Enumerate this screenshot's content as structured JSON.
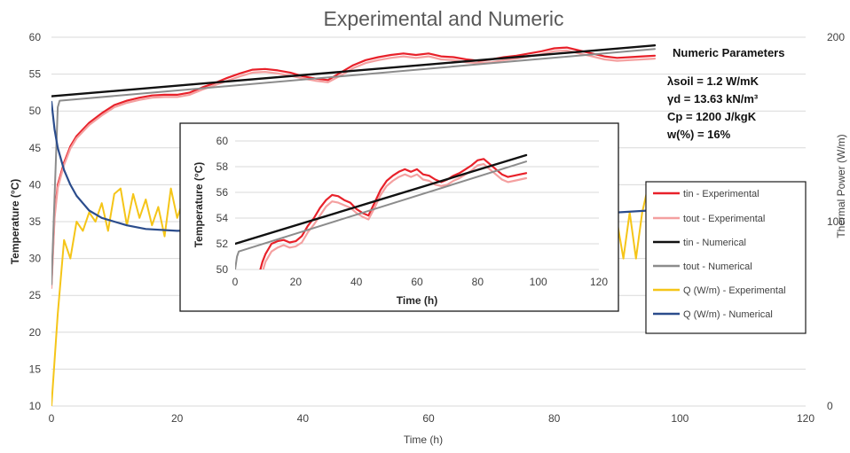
{
  "chart_data": [
    {
      "type": "line",
      "title": "Experimental and Numeric",
      "xlabel": "Time (h)",
      "ylabel": "Temperature (°C)",
      "y2label": "Thermal Power (W/m)",
      "xlim": [
        0,
        120
      ],
      "ylim": [
        10,
        60
      ],
      "y2lim": [
        0,
        200
      ],
      "xticks": [
        0,
        20,
        40,
        60,
        80,
        100,
        120
      ],
      "yticks": [
        10,
        15,
        20,
        25,
        30,
        35,
        40,
        45,
        50,
        55,
        60
      ],
      "y2ticks": [
        0,
        100,
        200
      ],
      "grid": "horizontal",
      "legend_placement": "right",
      "series": [
        {
          "name": "tin - Experimental",
          "color": "#e8212a",
          "width": 2.2,
          "axis": "left",
          "x": [
            0,
            0.5,
            1,
            2,
            3,
            4,
            6,
            8,
            10,
            12,
            14,
            16,
            18,
            20,
            22,
            24,
            26,
            28,
            30,
            32,
            34,
            36,
            38,
            40,
            42,
            44,
            46,
            48,
            50,
            52,
            54,
            56,
            58,
            60,
            62,
            64,
            66,
            68,
            70,
            72,
            74,
            76,
            78,
            80,
            82,
            84,
            86,
            88,
            90,
            92,
            94,
            96
          ],
          "y": [
            26.5,
            36,
            40,
            43,
            45.2,
            46.6,
            48.4,
            49.7,
            50.8,
            51.4,
            51.8,
            52.1,
            52.2,
            52.2,
            52.5,
            53.2,
            53.8,
            54.5,
            55.1,
            55.6,
            55.7,
            55.5,
            55.2,
            54.7,
            54.4,
            54.2,
            55.2,
            56.2,
            56.9,
            57.3,
            57.6,
            57.8,
            57.6,
            57.8,
            57.4,
            57.3,
            57,
            56.8,
            57,
            57.3,
            57.5,
            57.8,
            58.1,
            58.5,
            58.6,
            58.2,
            57.8,
            57.4,
            57.2,
            57.3,
            57.4,
            57.5
          ]
        },
        {
          "name": "tout - Experimental",
          "color": "#f4a0a0",
          "width": 2.2,
          "axis": "left",
          "x": [
            0,
            0.5,
            1,
            2,
            3,
            4,
            6,
            8,
            10,
            12,
            14,
            16,
            18,
            20,
            22,
            24,
            26,
            28,
            30,
            32,
            34,
            36,
            38,
            40,
            42,
            44,
            46,
            48,
            50,
            52,
            54,
            56,
            58,
            60,
            62,
            64,
            66,
            68,
            70,
            72,
            74,
            76,
            78,
            80,
            82,
            84,
            86,
            88,
            90,
            92,
            94,
            96
          ],
          "y": [
            26,
            35.5,
            39.6,
            42.7,
            44.9,
            46.3,
            48.1,
            49.4,
            50.5,
            51.1,
            51.5,
            51.8,
            51.9,
            51.9,
            52.2,
            52.9,
            53.5,
            54.1,
            54.7,
            55.2,
            55.3,
            55.1,
            54.8,
            54.4,
            54.1,
            53.9,
            54.8,
            55.8,
            56.5,
            56.9,
            57.2,
            57.4,
            57.2,
            57.4,
            57,
            56.9,
            56.6,
            56.5,
            56.6,
            56.9,
            57.1,
            57.4,
            57.7,
            58.1,
            58.2,
            57.8,
            57.4,
            57,
            56.8,
            56.9,
            57,
            57.1
          ]
        },
        {
          "name": "tin - Numerical",
          "color": "#111111",
          "width": 2.4,
          "axis": "left",
          "x": [
            0,
            96
          ],
          "y": [
            52,
            58.9
          ]
        },
        {
          "name": "tout - Numerical",
          "color": "#8c8c8c",
          "width": 2,
          "axis": "left",
          "x": [
            0,
            1,
            1.3,
            96
          ],
          "y": [
            26.5,
            50.5,
            51.4,
            58.4
          ]
        },
        {
          "name": "Q (W/m) - Experimental",
          "color": "#f5c518",
          "width": 2,
          "axis": "right",
          "x": [
            0,
            1,
            2,
            3,
            4,
            5,
            6,
            7,
            8,
            9,
            10,
            11,
            12,
            13,
            14,
            15,
            16,
            17,
            18,
            19,
            20,
            21,
            22,
            23,
            24,
            25,
            26,
            27,
            28,
            29,
            30,
            31,
            32,
            33,
            34,
            35,
            36,
            37,
            38,
            39,
            40,
            41,
            42,
            43,
            44,
            45,
            46,
            47,
            48,
            49,
            50,
            51,
            52,
            53,
            54,
            55,
            56,
            57,
            58,
            59,
            60,
            61,
            62,
            63,
            64,
            65,
            66,
            67,
            68,
            69,
            70,
            71,
            72,
            73,
            74,
            75,
            76,
            77,
            78,
            79,
            80,
            81,
            82,
            83,
            84,
            85,
            86,
            87,
            88,
            89,
            90,
            91,
            92,
            93,
            94,
            95
          ],
          "y": [
            0,
            50,
            90,
            80,
            100,
            95,
            105,
            100,
            110,
            95,
            115,
            118,
            98,
            115,
            102,
            112,
            98,
            108,
            92,
            118,
            102,
            112,
            95,
            115,
            100,
            110,
            98,
            112,
            100,
            95,
            110,
            105,
            108,
            122,
            100,
            112,
            108,
            120,
            95,
            112,
            98,
            100,
            110,
            95,
            82,
            100,
            118,
            112,
            130,
            105,
            118,
            108,
            118,
            112,
            120,
            105,
            118,
            110,
            112,
            115,
            100,
            118,
            110,
            115,
            108,
            120,
            105,
            112,
            115,
            100,
            112,
            105,
            118,
            110,
            115,
            108,
            120,
            112,
            125,
            130,
            115,
            130,
            100,
            112,
            80,
            82,
            78,
            82,
            95,
            82,
            100,
            80,
            105,
            80,
            105,
            120
          ]
        },
        {
          "name": "Q (W/m) - Numerical",
          "color": "#2b4c8c",
          "width": 2.2,
          "axis": "right",
          "x": [
            0,
            0.5,
            1,
            2,
            3,
            4,
            5,
            6,
            8,
            10,
            12,
            15,
            20,
            30,
            40,
            50,
            60,
            70,
            80,
            90,
            95
          ],
          "y": [
            165,
            150,
            140,
            128,
            120,
            114,
            110,
            106,
            102,
            100,
            98,
            96,
            95,
            96,
            97,
            99,
            100,
            102,
            104,
            105,
            106
          ]
        }
      ],
      "annotation": {
        "heading": "Numeric Parameters",
        "lines": [
          "λsoil = 1.2 W/mK",
          "γd = 13.63 kN/m³",
          "Cp = 1200 J/kgK",
          "w(%) = 16%"
        ]
      }
    },
    {
      "type": "line",
      "xlabel": "Time (h)",
      "ylabel": "Temperature (°C)",
      "xlim": [
        0,
        120
      ],
      "ylim": [
        50,
        60
      ],
      "xticks": [
        0,
        20,
        40,
        60,
        80,
        100,
        120
      ],
      "yticks": [
        50,
        52,
        54,
        56,
        58,
        60
      ],
      "grid": "horizontal",
      "series": [
        {
          "name": "tin - Experimental",
          "color": "#e8212a",
          "width": 2.2,
          "x": [
            8,
            9,
            10,
            12,
            14,
            16,
            18,
            20,
            22,
            24,
            26,
            28,
            30,
            32,
            34,
            36,
            38,
            40,
            42,
            44,
            46,
            48,
            50,
            52,
            54,
            56,
            58,
            60,
            62,
            64,
            66,
            68,
            70,
            72,
            74,
            76,
            78,
            80,
            82,
            84,
            86,
            88,
            90,
            92,
            94,
            96
          ],
          "y": [
            49.7,
            50.6,
            51.2,
            52,
            52.2,
            52.3,
            52.1,
            52.2,
            52.6,
            53.4,
            54,
            54.8,
            55.4,
            55.8,
            55.7,
            55.4,
            55.2,
            54.7,
            54.4,
            54.2,
            55.2,
            56.2,
            56.9,
            57.3,
            57.6,
            57.8,
            57.6,
            57.8,
            57.4,
            57.3,
            57,
            56.8,
            57,
            57.3,
            57.5,
            57.8,
            58.1,
            58.5,
            58.6,
            58.2,
            57.8,
            57.4,
            57.2,
            57.3,
            57.4,
            57.5
          ]
        },
        {
          "name": "tout - Experimental",
          "color": "#f4a0a0",
          "width": 2.2,
          "x": [
            9,
            10,
            12,
            14,
            16,
            18,
            20,
            22,
            24,
            26,
            28,
            30,
            32,
            34,
            36,
            38,
            40,
            42,
            44,
            46,
            48,
            50,
            52,
            54,
            56,
            58,
            60,
            62,
            64,
            66,
            68,
            70,
            72,
            74,
            76,
            78,
            80,
            82,
            84,
            86,
            88,
            90,
            92,
            94,
            96
          ],
          "y": [
            49.8,
            50.6,
            51.4,
            51.7,
            51.9,
            51.7,
            51.8,
            52.1,
            52.9,
            53.5,
            54.2,
            54.9,
            55.3,
            55.2,
            55,
            54.8,
            54.4,
            54.1,
            53.9,
            54.8,
            55.8,
            56.5,
            56.9,
            57.2,
            57.4,
            57.2,
            57.4,
            57,
            56.9,
            56.6,
            56.5,
            56.6,
            56.9,
            57.1,
            57.4,
            57.7,
            58.1,
            58.2,
            57.8,
            57.4,
            57,
            56.8,
            56.9,
            57,
            57.1
          ]
        },
        {
          "name": "tin - Numerical",
          "color": "#111111",
          "width": 2.4,
          "x": [
            0,
            96
          ],
          "y": [
            52,
            58.9
          ]
        },
        {
          "name": "tout - Numerical",
          "color": "#8c8c8c",
          "width": 2,
          "x": [
            0,
            0.6,
            1.2,
            96
          ],
          "y": [
            50,
            51,
            51.4,
            58.4
          ]
        }
      ]
    }
  ]
}
